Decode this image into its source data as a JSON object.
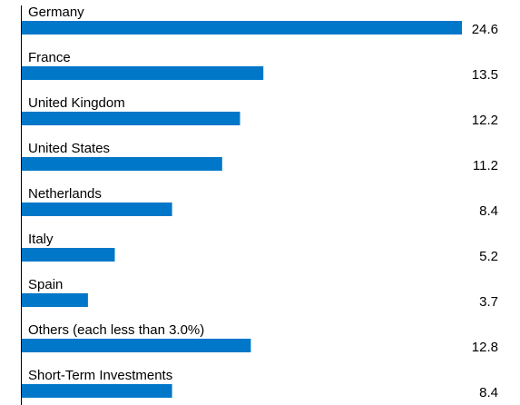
{
  "chart_data": {
    "type": "bar",
    "orientation": "horizontal",
    "categories": [
      "Germany",
      "France",
      "United Kingdom",
      "United States",
      "Netherlands",
      "Italy",
      "Spain",
      "Others (each less than 3.0%)",
      "Short-Term Investments"
    ],
    "values": [
      24.6,
      13.5,
      12.2,
      11.2,
      8.4,
      5.2,
      3.7,
      12.8,
      8.4
    ],
    "value_labels": [
      "24.6",
      "13.5",
      "12.2",
      "11.2",
      "8.4",
      "5.2",
      "3.7",
      "12.8",
      "8.4"
    ],
    "xlim": [
      0,
      24.6
    ],
    "grid": false,
    "legend": "none",
    "bar_color": "#0077c8"
  }
}
